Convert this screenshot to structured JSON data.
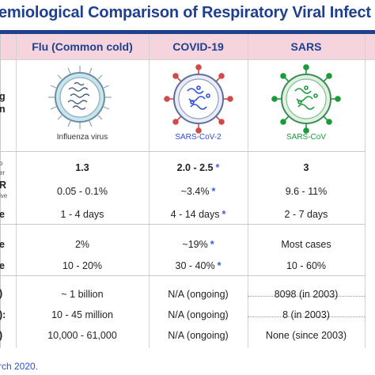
{
  "title": "emiological Comparison of Respiratory Viral Infect",
  "headers": {
    "flu": "Flu (Common cold)",
    "covid": "COVID-19",
    "sars": "SARS"
  },
  "virus_labels": {
    "flu": "Influenza virus",
    "covid": "SARS-CoV-2",
    "sars": "SARS-CoV"
  },
  "row_label_fragments": {
    "r0a": "g",
    "r0b": "n",
    "r1a": "o",
    "r1b": "er",
    "r2a": "R",
    "r2b": "ive",
    "r3": "e",
    "r4": "e",
    "r5": "e",
    "r6": ")",
    "r7": "):",
    "r8": ")"
  },
  "rows": [
    {
      "flu": "1.3",
      "covid": "2.0 - 2.5",
      "covid_star": "*",
      "sars": "3"
    },
    {
      "flu": "0.05 - 0.1%",
      "covid": "~3.4%",
      "covid_star": "*",
      "sars": "9.6 - 11%"
    },
    {
      "flu": "1 - 4 days",
      "covid": "4 - 14 days",
      "covid_star": "*",
      "sars": "2 - 7 days"
    },
    {
      "flu": "2%",
      "covid": "~19%",
      "covid_star": "*",
      "sars": "Most cases"
    },
    {
      "flu": "10 - 20%",
      "covid": "30 - 40%",
      "covid_star": "*",
      "sars": "10 - 60%"
    },
    {
      "flu": "~ 1 billion",
      "covid": "N/A (ongoing)",
      "covid_star": "",
      "sars": "8098 (in 2003)"
    },
    {
      "flu": "10 - 45 million",
      "covid": "N/A (ongoing)",
      "covid_star": "",
      "sars": "8 (in 2003)"
    },
    {
      "flu": "10,000 - 61,000",
      "covid": "N/A (ongoing)",
      "covid_star": "",
      "sars": "None (since 2003)"
    }
  ],
  "footer": "rch 2020.",
  "colors": {
    "title": "#1f3f8f",
    "header_bg": "#f6d4dd",
    "covid_accent": "#2b4fd6",
    "sars_accent": "#1a9a3b",
    "flu_virus": "#c9e6ef"
  }
}
